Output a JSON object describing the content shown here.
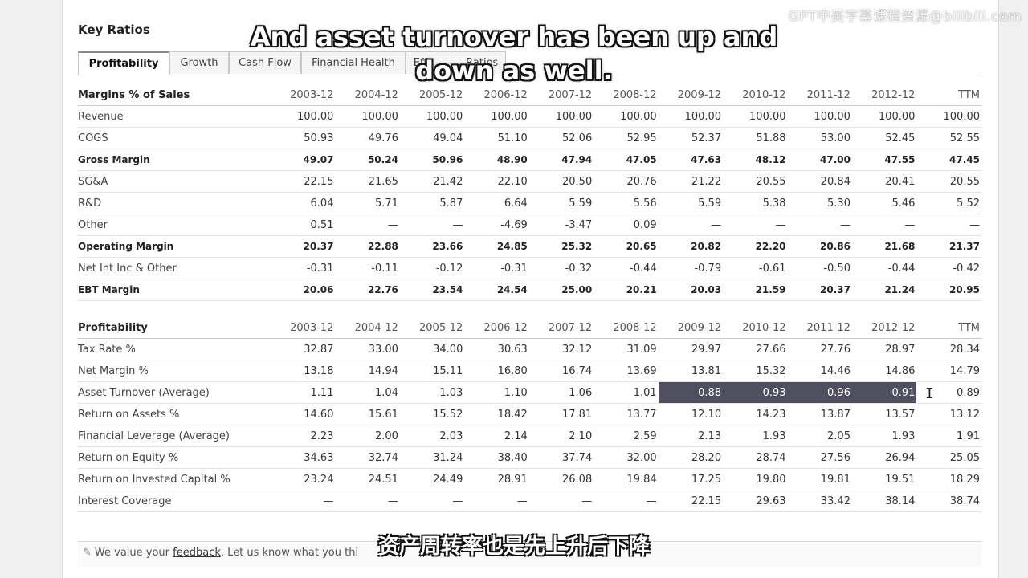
{
  "title": "Key Ratios",
  "tabs": [
    "Profitability",
    "Growth",
    "Cash Flow",
    "Financial Health",
    "Efficiency Ratios"
  ],
  "tabs_visible": [
    "Profitability",
    "Growth",
    "Cash Flow",
    "Financial Health",
    "Eff",
    "Ratios"
  ],
  "years": [
    "2003-12",
    "2004-12",
    "2005-12",
    "2006-12",
    "2007-12",
    "2008-12",
    "2009-12",
    "2010-12",
    "2011-12",
    "2012-12",
    "TTM"
  ],
  "margins": {
    "header": "Margins % of Sales",
    "rows": [
      {
        "label": "Revenue",
        "bold": false,
        "values": [
          "100.00",
          "100.00",
          "100.00",
          "100.00",
          "100.00",
          "100.00",
          "100.00",
          "100.00",
          "100.00",
          "100.00",
          "100.00"
        ]
      },
      {
        "label": "COGS",
        "bold": false,
        "values": [
          "50.93",
          "49.76",
          "49.04",
          "51.10",
          "52.06",
          "52.95",
          "52.37",
          "51.88",
          "53.00",
          "52.45",
          "52.55"
        ]
      },
      {
        "label": "Gross Margin",
        "bold": true,
        "values": [
          "49.07",
          "50.24",
          "50.96",
          "48.90",
          "47.94",
          "47.05",
          "47.63",
          "48.12",
          "47.00",
          "47.55",
          "47.45"
        ]
      },
      {
        "label": "SG&A",
        "bold": false,
        "values": [
          "22.15",
          "21.65",
          "21.42",
          "22.10",
          "20.50",
          "20.76",
          "21.22",
          "20.55",
          "20.84",
          "20.41",
          "20.55"
        ]
      },
      {
        "label": "R&D",
        "bold": false,
        "values": [
          "6.04",
          "5.71",
          "5.87",
          "6.64",
          "5.59",
          "5.56",
          "5.59",
          "5.38",
          "5.30",
          "5.46",
          "5.52"
        ]
      },
      {
        "label": "Other",
        "bold": false,
        "values": [
          "0.51",
          "—",
          "—",
          "-4.69",
          "-3.47",
          "0.09",
          "—",
          "—",
          "—",
          "—",
          "—"
        ]
      },
      {
        "label": "Operating Margin",
        "bold": true,
        "values": [
          "20.37",
          "22.88",
          "23.66",
          "24.85",
          "25.32",
          "20.65",
          "20.82",
          "22.20",
          "20.86",
          "21.68",
          "21.37"
        ]
      },
      {
        "label": "Net Int Inc & Other",
        "bold": false,
        "values": [
          "-0.31",
          "-0.11",
          "-0.12",
          "-0.31",
          "-0.32",
          "-0.44",
          "-0.79",
          "-0.61",
          "-0.50",
          "-0.44",
          "-0.42"
        ]
      },
      {
        "label": "EBT Margin",
        "bold": true,
        "values": [
          "20.06",
          "22.76",
          "23.54",
          "24.54",
          "25.00",
          "20.21",
          "20.03",
          "21.59",
          "20.37",
          "21.24",
          "20.95"
        ]
      }
    ]
  },
  "profitability": {
    "header": "Profitability",
    "rows": [
      {
        "label": "Tax Rate %",
        "values": [
          "32.87",
          "33.00",
          "34.00",
          "30.63",
          "32.12",
          "31.09",
          "29.97",
          "27.66",
          "27.76",
          "28.97",
          "28.34"
        ]
      },
      {
        "label": "Net Margin %",
        "values": [
          "13.18",
          "14.94",
          "15.11",
          "16.80",
          "16.74",
          "13.69",
          "13.81",
          "15.32",
          "14.46",
          "14.86",
          "14.79"
        ]
      },
      {
        "label": "Asset Turnover (Average)",
        "values": [
          "1.11",
          "1.04",
          "1.03",
          "1.10",
          "1.06",
          "1.01",
          "0.88",
          "0.93",
          "0.96",
          "0.91",
          "0.89"
        ],
        "selected": [
          6,
          7,
          8,
          9
        ]
      },
      {
        "label": "Return on Assets %",
        "values": [
          "14.60",
          "15.61",
          "15.52",
          "18.42",
          "17.81",
          "13.77",
          "12.10",
          "14.23",
          "13.87",
          "13.57",
          "13.12"
        ]
      },
      {
        "label": "Financial Leverage (Average)",
        "values": [
          "2.23",
          "2.00",
          "2.03",
          "2.14",
          "2.10",
          "2.59",
          "2.13",
          "1.93",
          "2.05",
          "1.93",
          "1.91"
        ]
      },
      {
        "label": "Return on Equity %",
        "values": [
          "34.63",
          "32.74",
          "31.24",
          "38.40",
          "37.74",
          "32.00",
          "28.20",
          "28.74",
          "27.56",
          "26.94",
          "25.05"
        ]
      },
      {
        "label": "Return on Invested Capital %",
        "values": [
          "23.24",
          "24.51",
          "24.49",
          "28.91",
          "26.08",
          "19.84",
          "17.25",
          "19.80",
          "19.81",
          "19.51",
          "18.29"
        ]
      },
      {
        "label": "Interest Coverage",
        "values": [
          "—",
          "—",
          "—",
          "—",
          "—",
          "—",
          "22.15",
          "29.63",
          "33.42",
          "38.14",
          "38.74"
        ]
      }
    ]
  },
  "feedback": {
    "prefix": "We value your",
    "link": "feedback",
    "suffix": ". Let us know what you thi"
  },
  "subtitles": {
    "en_line1": "And asset turnover has been up and",
    "en_line2": "down as well.",
    "zh": "资产周转率也是先上升后下降"
  },
  "watermark": "GPT中英字幕课程资源@bilibili.com"
}
